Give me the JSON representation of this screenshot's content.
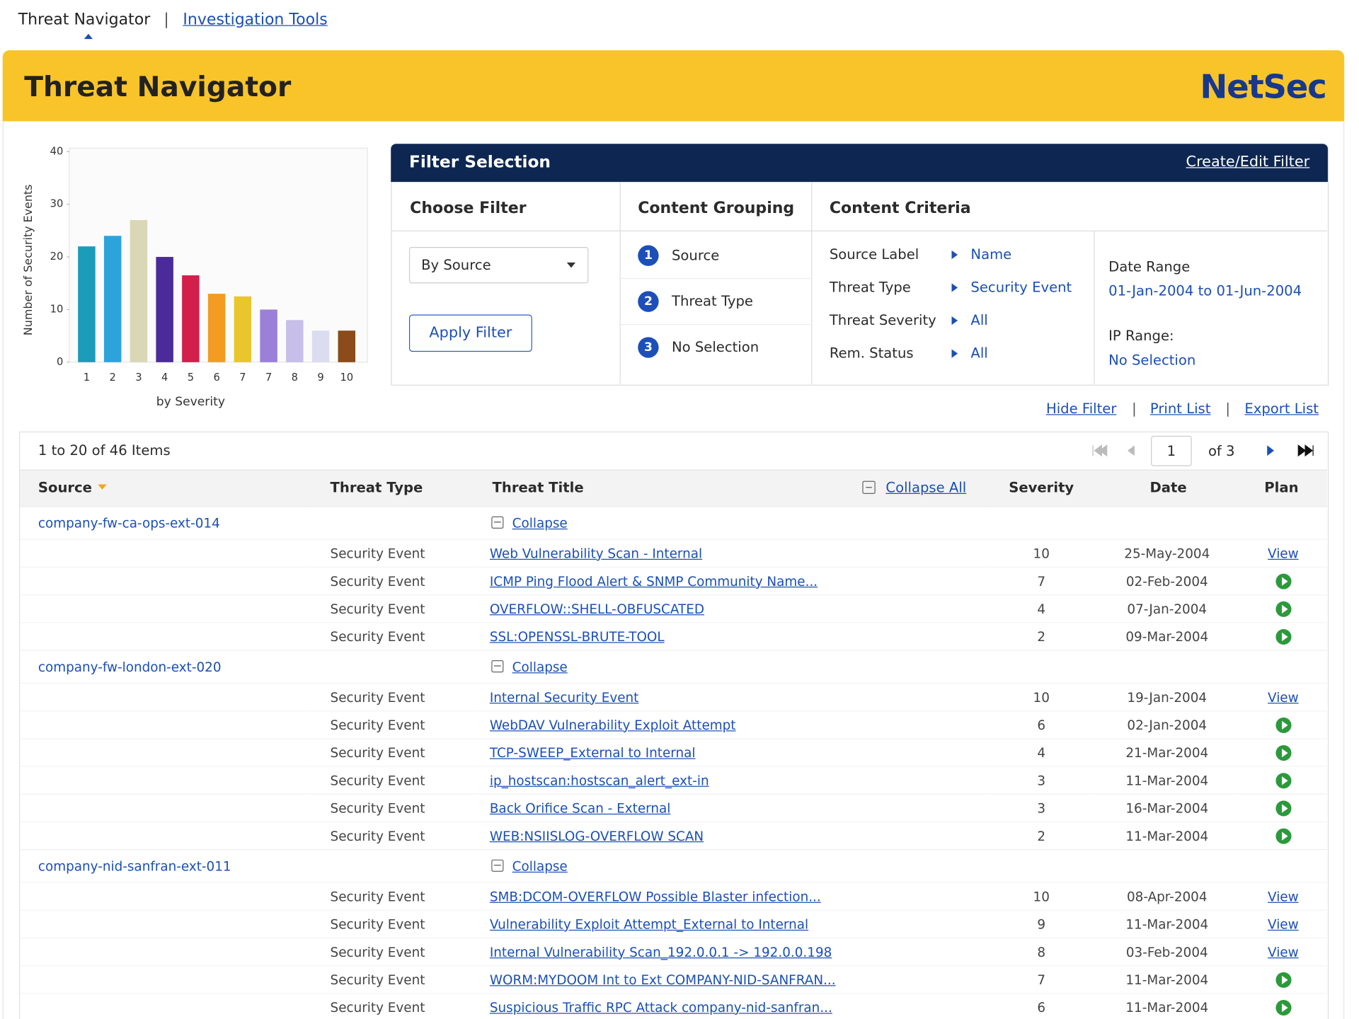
{
  "nav": {
    "active": "Threat Navigator",
    "separator": "|",
    "link": "Investigation Tools"
  },
  "header": {
    "title": "Threat Navigator",
    "brand": "NetSec"
  },
  "chart": {
    "type": "bar",
    "y_label": "Number of Security Events",
    "x_label": "by Severity",
    "categories": [
      "1",
      "2",
      "3",
      "4",
      "5",
      "6",
      "7",
      "7",
      "8",
      "9",
      "10"
    ],
    "values": [
      22,
      24,
      27,
      20,
      16.5,
      13,
      12.5,
      10,
      8,
      6,
      6
    ],
    "colors": [
      "#1b9cb8",
      "#2da3dc",
      "#d9d7b6",
      "#4a2b99",
      "#d21f4b",
      "#f39c22",
      "#e9c72c",
      "#9b80d8",
      "#c7bee9",
      "#dcdcf1",
      "#8b4b1a"
    ],
    "ylim": [
      0,
      40
    ],
    "yticks": [
      0,
      10,
      20,
      30,
      40
    ]
  },
  "filter": {
    "title": "Filter Selection",
    "edit_link": "Create/Edit Filter",
    "columns": [
      "Choose Filter",
      "Content Grouping",
      "Content Criteria"
    ],
    "select": "By Source",
    "apply": "Apply Filter",
    "grouping": [
      {
        "number": "1",
        "label": "Source"
      },
      {
        "number": "2",
        "label": "Threat Type"
      },
      {
        "number": "3",
        "label": "No Selection"
      }
    ],
    "criteria": [
      {
        "label": "Source Label",
        "value": "Name"
      },
      {
        "label": "Threat Type",
        "value": "Security Event"
      },
      {
        "label": "Threat Severity",
        "value": "All"
      },
      {
        "label": "Rem. Status",
        "value": "All"
      }
    ],
    "date_range": {
      "label": "Date Range",
      "value": "01-Jan-2004 to 01-Jun-2004"
    },
    "ip_range": {
      "label": "IP Range:",
      "value": "No Selection"
    }
  },
  "actions": {
    "items": [
      "Hide Filter",
      "Print List",
      "Export List"
    ],
    "separator": "|"
  },
  "list": {
    "summary": "1 to 20 of 46 Items",
    "page": "1",
    "of_pages": "of 3",
    "columns": {
      "source": "Source",
      "type": "Threat Type",
      "title": "Threat Title",
      "collapse_all": "Collapse All",
      "severity": "Severity",
      "date": "Date",
      "plan": "Plan"
    },
    "groups": [
      {
        "source": "company-fw-ca-ops-ext-014",
        "collapse": "Collapse",
        "rows": [
          {
            "type": "Security Event",
            "title": "Web Vulnerability Scan - Internal",
            "severity": 10,
            "date": "25-May-2004",
            "plan": "View"
          },
          {
            "type": "Security Event",
            "title": "ICMP Ping Flood Alert & SNMP Community Name...",
            "severity": 7,
            "date": "02-Feb-2004"
          },
          {
            "type": "Security Event",
            "title": "OVERFLOW::SHELL-OBFUSCATED",
            "severity": 4,
            "date": "07-Jan-2004"
          },
          {
            "type": "Security Event",
            "title": "SSL:OPENSSL-BRUTE-TOOL",
            "severity": 2,
            "date": "09-Mar-2004"
          }
        ]
      },
      {
        "source": "company-fw-london-ext-020",
        "collapse": "Collapse",
        "rows": [
          {
            "type": "Security Event",
            "title": "Internal Security Event",
            "severity": 10,
            "date": "19-Jan-2004",
            "plan": "View"
          },
          {
            "type": "Security Event",
            "title": "WebDAV Vulnerability Exploit Attempt",
            "severity": 6,
            "date": "02-Jan-2004"
          },
          {
            "type": "Security Event",
            "title": "TCP-SWEEP_External to Internal",
            "severity": 4,
            "date": "21-Mar-2004"
          },
          {
            "type": "Security Event",
            "title": "ip_hostscan:hostscan_alert_ext-in",
            "severity": 3,
            "date": "11-Mar-2004"
          },
          {
            "type": "Security Event",
            "title": "Back Orifice Scan - External",
            "severity": 3,
            "date": "16-Mar-2004"
          },
          {
            "type": "Security Event",
            "title": "WEB:NSIISLOG-OVERFLOW SCAN",
            "severity": 2,
            "date": "11-Mar-2004"
          }
        ]
      },
      {
        "source": "company-nid-sanfran-ext-011",
        "collapse": "Collapse",
        "rows": [
          {
            "type": "Security Event",
            "title": "SMB:DCOM-OVERFLOW Possible Blaster infection...",
            "severity": 10,
            "date": "08-Apr-2004",
            "plan": "View"
          },
          {
            "type": "Security Event",
            "title": "Vulnerability Exploit Attempt_External to Internal",
            "severity": 9,
            "date": "11-Mar-2004",
            "plan": "View"
          },
          {
            "type": "Security Event",
            "title": "Internal Vulnerability Scan_192.0.0.1 -> 192.0.0.198",
            "severity": 8,
            "date": "03-Feb-2004",
            "plan": "View"
          },
          {
            "type": "Security Event",
            "title": "WORM:MYDOOM Int to Ext COMPANY-NID-SANFRAN...",
            "severity": 7,
            "date": "11-Mar-2004"
          },
          {
            "type": "Security Event",
            "title": "Suspicious Traffic RPC Attack company-nid-sanfran...",
            "severity": 6,
            "date": "11-Mar-2004"
          }
        ]
      }
    ]
  }
}
